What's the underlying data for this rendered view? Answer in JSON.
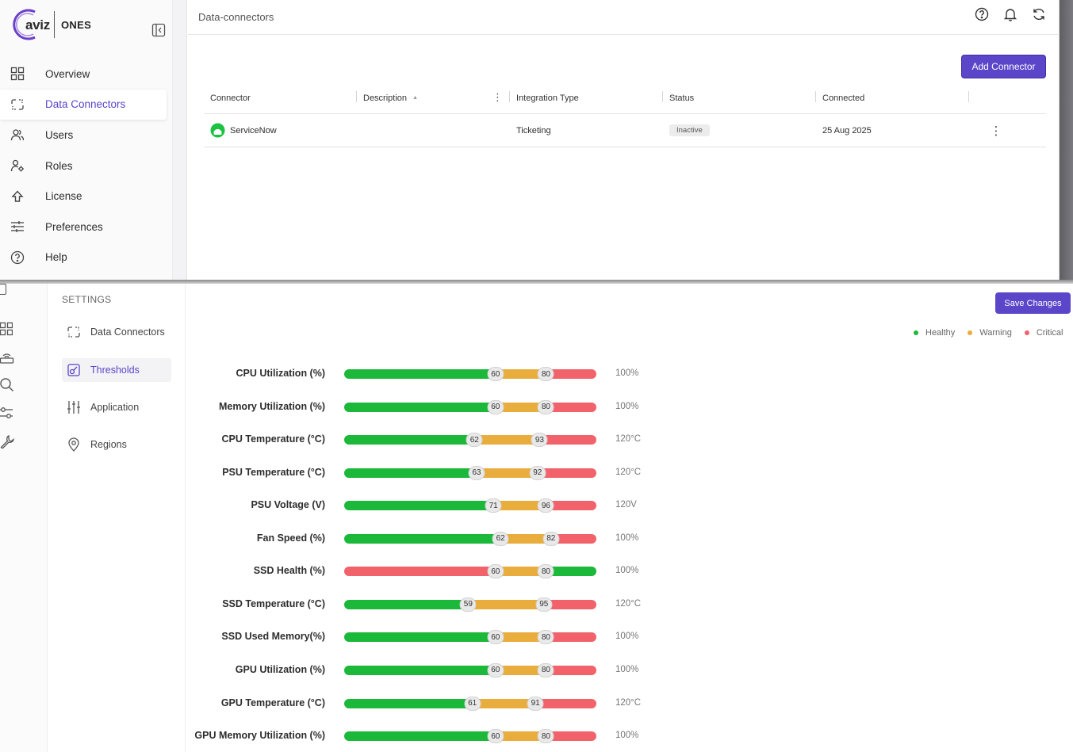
{
  "top": {
    "logo": {
      "brand": "aviz",
      "product": "ONES"
    },
    "nav": [
      {
        "label": "Overview",
        "icon": "grid-icon",
        "active": false
      },
      {
        "label": "Data Connectors",
        "icon": "connector-icon",
        "active": true
      },
      {
        "label": "Users",
        "icon": "users-icon",
        "active": false
      },
      {
        "label": "Roles",
        "icon": "user-gear-icon",
        "active": false
      },
      {
        "label": "License",
        "icon": "upload-arrow-icon",
        "active": false
      },
      {
        "label": "Preferences",
        "icon": "sliders-icon",
        "active": false
      },
      {
        "label": "Help",
        "icon": "help-circle-icon",
        "active": false
      }
    ],
    "breadcrumb": "Data-connectors",
    "topbar_icons": [
      "help-icon",
      "bell-icon",
      "refresh-icon"
    ],
    "add_connector_label": "Add Connector",
    "table": {
      "columns": [
        "Connector",
        "Description",
        "Integration Type",
        "Status",
        "Connected"
      ],
      "rows": [
        {
          "connector": "ServiceNow",
          "description": "",
          "integration_type": "Ticketing",
          "status": "Inactive",
          "connected": "25 Aug 2025"
        }
      ]
    }
  },
  "bottom": {
    "settings_title": "SETTINGS",
    "settings_nav": [
      {
        "label": "Data Connectors",
        "icon": "connector-icon",
        "active": false
      },
      {
        "label": "Thresholds",
        "icon": "threshold-icon",
        "active": true
      },
      {
        "label": "Application",
        "icon": "sliders-vertical-icon",
        "active": false
      },
      {
        "label": "Regions",
        "icon": "location-pin-icon",
        "active": false
      }
    ],
    "rail_icons": [
      "grid-icon",
      "router-icon",
      "search-icon",
      "toggles-icon",
      "wrench-icon"
    ],
    "save_label": "Save Changes",
    "legend": [
      {
        "label": "Healthy",
        "color": "#1cb83a"
      },
      {
        "label": "Warning",
        "color": "#e8ad3c"
      },
      {
        "label": "Critical",
        "color": "#f2626b"
      }
    ],
    "thresholds": [
      {
        "label": "CPU Utilization (%)",
        "low": 60,
        "high": 80,
        "max": 100,
        "max_label": "100%",
        "inverted": false
      },
      {
        "label": "Memory Utilization (%)",
        "low": 60,
        "high": 80,
        "max": 100,
        "max_label": "100%",
        "inverted": false
      },
      {
        "label": "CPU Temperature (°C)",
        "low": 62,
        "high": 93,
        "max": 120,
        "max_label": "120°C",
        "inverted": false
      },
      {
        "label": "PSU Temperature (°C)",
        "low": 63,
        "high": 92,
        "max": 120,
        "max_label": "120°C",
        "inverted": false
      },
      {
        "label": "PSU Voltage (V)",
        "low": 71,
        "high": 96,
        "max": 120,
        "max_label": "120V",
        "inverted": false
      },
      {
        "label": "Fan Speed (%)",
        "low": 62,
        "high": 82,
        "max": 100,
        "max_label": "100%",
        "inverted": false
      },
      {
        "label": "SSD Health (%)",
        "low": 60,
        "high": 80,
        "max": 100,
        "max_label": "100%",
        "inverted": true
      },
      {
        "label": "SSD Temperature (°C)",
        "low": 59,
        "high": 95,
        "max": 120,
        "max_label": "120°C",
        "inverted": false
      },
      {
        "label": "SSD Used Memory(%)",
        "low": 60,
        "high": 80,
        "max": 100,
        "max_label": "100%",
        "inverted": false
      },
      {
        "label": "GPU Utilization (%)",
        "low": 60,
        "high": 80,
        "max": 100,
        "max_label": "100%",
        "inverted": false
      },
      {
        "label": "GPU Temperature (°C)",
        "low": 61,
        "high": 91,
        "max": 120,
        "max_label": "120°C",
        "inverted": false
      },
      {
        "label": "GPU Memory Utilization (%)",
        "low": 60,
        "high": 80,
        "max": 100,
        "max_label": "100%",
        "inverted": false
      }
    ]
  }
}
